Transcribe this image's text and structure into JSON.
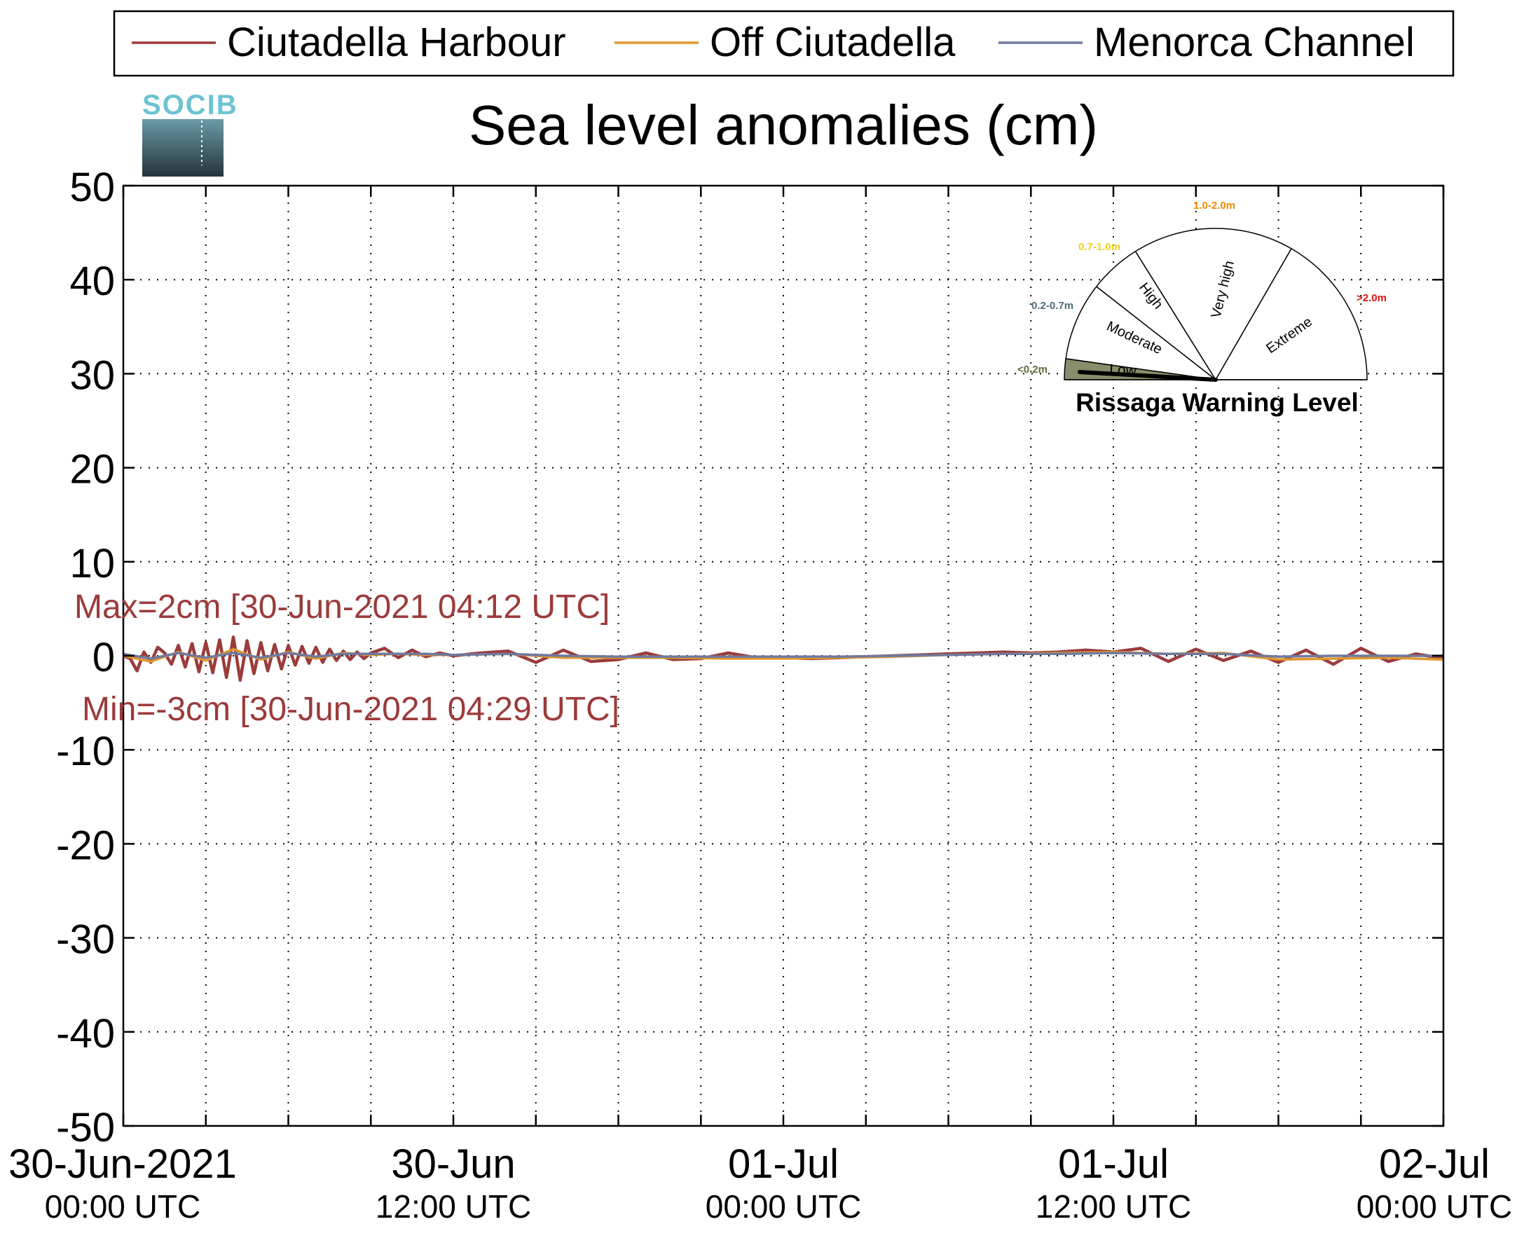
{
  "colors": {
    "ciutadella_harbour": "#9b3b3b",
    "off_ciutadella": "#e0962f",
    "menorca_channel": "#6f7a9e",
    "gauge_low_fill": "#868e6b",
    "gauge_low_label": "#5b6b3b",
    "gauge_moderate_label": "#4a6a7a",
    "gauge_high_label": "#f2d21a",
    "gauge_veryhigh_label": "#f08a00",
    "gauge_extreme_label": "#e01010",
    "logo_text": "#6cc3d2",
    "logo_top": "#6a9aa6",
    "logo_bottom": "#25343b"
  },
  "logo": {
    "text": "SOCIB"
  },
  "chart_data": {
    "type": "line",
    "title": "Sea level anomalies (cm)",
    "xlabel": "",
    "ylabel": "",
    "ylim": [
      -50,
      50
    ],
    "yticks": [
      50,
      40,
      30,
      20,
      10,
      0,
      -10,
      -20,
      -30,
      -40,
      -50
    ],
    "x_range_hours": [
      0,
      48
    ],
    "x_tick_hours": [
      0,
      12,
      24,
      36,
      48
    ],
    "x_minor_tick_hours": [
      3,
      6,
      9,
      15,
      18,
      21,
      27,
      30,
      33,
      39,
      42,
      45
    ],
    "x_tick_labels": [
      {
        "date": "30-Jun-2021",
        "time": "00:00 UTC"
      },
      {
        "date": "30-Jun",
        "time": "12:00 UTC"
      },
      {
        "date": "01-Jul",
        "time": "00:00 UTC"
      },
      {
        "date": "01-Jul",
        "time": "12:00 UTC"
      },
      {
        "date": "02-Jul",
        "time": "00:00 UTC"
      }
    ],
    "grid": true,
    "legend_position": "top",
    "series": [
      {
        "name": "Ciutadella Harbour",
        "x": [
          0,
          0.25,
          0.5,
          0.75,
          1,
          1.25,
          1.5,
          1.75,
          2,
          2.25,
          2.5,
          2.75,
          3,
          3.25,
          3.5,
          3.75,
          4,
          4.25,
          4.5,
          4.75,
          5,
          5.25,
          5.5,
          5.75,
          6,
          6.25,
          6.5,
          6.75,
          7,
          7.25,
          7.5,
          7.75,
          8,
          8.25,
          8.5,
          8.75,
          9,
          9.5,
          10,
          10.5,
          11,
          11.5,
          12,
          13,
          14,
          15,
          16,
          17,
          18,
          19,
          20,
          21,
          22,
          23,
          24,
          25,
          26,
          27,
          28,
          29,
          30,
          31,
          32,
          33,
          34,
          35,
          36,
          37,
          38,
          39,
          40,
          41,
          42,
          43,
          44,
          45,
          46,
          47,
          48
        ],
        "values": [
          0,
          -0.3,
          -1.6,
          0.4,
          -0.7,
          0.9,
          0.3,
          -0.9,
          1.1,
          -1.2,
          1.3,
          -1.7,
          1.4,
          -1.8,
          1.7,
          -2.3,
          2.0,
          -2.6,
          1.6,
          -1.9,
          1.4,
          -1.6,
          1.2,
          -1.4,
          1.1,
          -1.0,
          1.0,
          -0.8,
          0.9,
          -0.7,
          0.7,
          -0.5,
          0.5,
          -0.4,
          0.4,
          -0.3,
          0.3,
          0.8,
          -0.2,
          0.6,
          -0.1,
          0.3,
          0,
          0.3,
          0.5,
          -0.7,
          0.6,
          -0.6,
          -0.4,
          0.3,
          -0.4,
          -0.3,
          0.3,
          -0.2,
          -0.2,
          -0.3,
          -0.2,
          -0.1,
          0,
          0.1,
          0.2,
          0.3,
          0.4,
          0.3,
          0.4,
          0.6,
          0.4,
          0.8,
          -0.6,
          0.7,
          -0.5,
          0.5,
          -0.7,
          0.6,
          -0.9,
          0.8,
          -0.6,
          0.2,
          -0.3
        ]
      },
      {
        "name": "Off Ciutadella",
        "x": [
          0,
          1,
          2,
          3,
          4,
          5,
          6,
          7,
          8,
          9,
          10,
          11,
          12,
          14,
          16,
          18,
          20,
          22,
          24,
          26,
          28,
          30,
          32,
          34,
          36,
          38,
          40,
          42,
          44,
          46,
          48
        ],
        "values": [
          0,
          -0.6,
          0.4,
          -0.5,
          0.7,
          -0.4,
          0.4,
          -0.3,
          0.3,
          0.1,
          0.2,
          0.1,
          0.1,
          0.2,
          -0.2,
          -0.2,
          -0.2,
          -0.3,
          -0.3,
          -0.2,
          -0.1,
          0.1,
          0.2,
          0.3,
          0.4,
          0.2,
          0.3,
          -0.4,
          -0.3,
          -0.2,
          -0.4
        ]
      },
      {
        "name": "Menorca Channel",
        "x": [
          0,
          1,
          2,
          3,
          4,
          5,
          6,
          7,
          8,
          9,
          10,
          11,
          12,
          14,
          16,
          18,
          20,
          22,
          24,
          26,
          28,
          30,
          32,
          34,
          36,
          38,
          40,
          42,
          44,
          46,
          48
        ],
        "values": [
          0.2,
          -0.3,
          0.3,
          -0.2,
          0.3,
          -0.2,
          0.3,
          -0.1,
          0.2,
          0.2,
          0.2,
          0.2,
          0.1,
          0.2,
          0,
          -0.1,
          -0.1,
          -0.1,
          -0.1,
          -0.1,
          0,
          0.1,
          0.2,
          0.2,
          0.3,
          0.2,
          0.2,
          -0.1,
          0,
          0,
          0
        ]
      }
    ],
    "annotations": [
      {
        "text": "Max=2cm [30-Jun-2021 04:12 UTC]",
        "x_hours": 0,
        "y": 5.2
      },
      {
        "text": "Min=-3cm [30-Jun-2021 04:29 UTC]",
        "x_hours": 0,
        "y": -5.5
      }
    ]
  },
  "gauge": {
    "title": "Rissaga Warning Level",
    "current_level": "Low",
    "sectors": [
      {
        "name": "Low",
        "range": "<0.2m"
      },
      {
        "name": "Moderate",
        "range": "0.2-0.7m"
      },
      {
        "name": "High",
        "range": "0.7-1.0m"
      },
      {
        "name": "Very high",
        "range": "1.0-2.0m"
      },
      {
        "name": "Extreme",
        "range": ">2.0m"
      }
    ]
  }
}
